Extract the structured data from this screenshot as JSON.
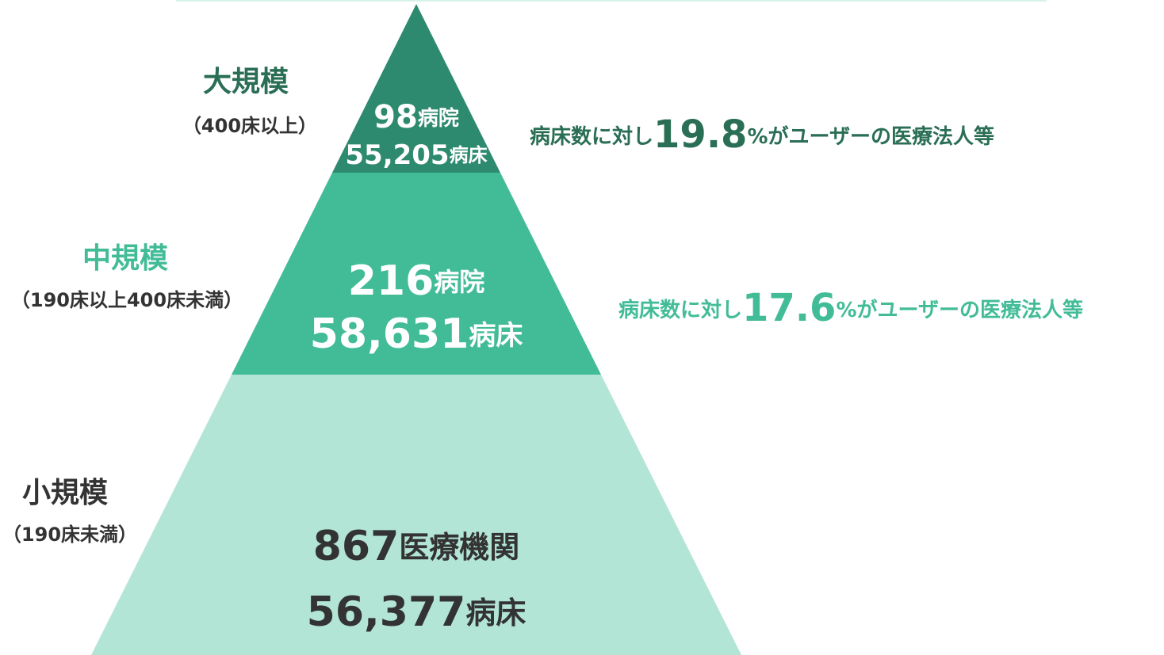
{
  "tiers": [
    {
      "name": "大規模",
      "range": "（400床以上）",
      "count": "98",
      "count_unit": "病院",
      "beds": "55,205",
      "beds_unit": "病床",
      "note_prefix": "病床数に対し",
      "percent": "19.8",
      "note_suffix": "%がユーザーの医療法人等"
    },
    {
      "name": "中規模",
      "range": "（190床以上400床未満）",
      "count": "216",
      "count_unit": "病院",
      "beds": "58,631",
      "beds_unit": "病床",
      "note_prefix": "病床数に対し",
      "percent": "17.6",
      "note_suffix": "%がユーザーの医療法人等"
    },
    {
      "name": "小規模",
      "range": "（190床未満）",
      "count": "867",
      "count_unit": "医療機関",
      "beds": "56,377",
      "beds_unit": "病床"
    }
  ]
}
